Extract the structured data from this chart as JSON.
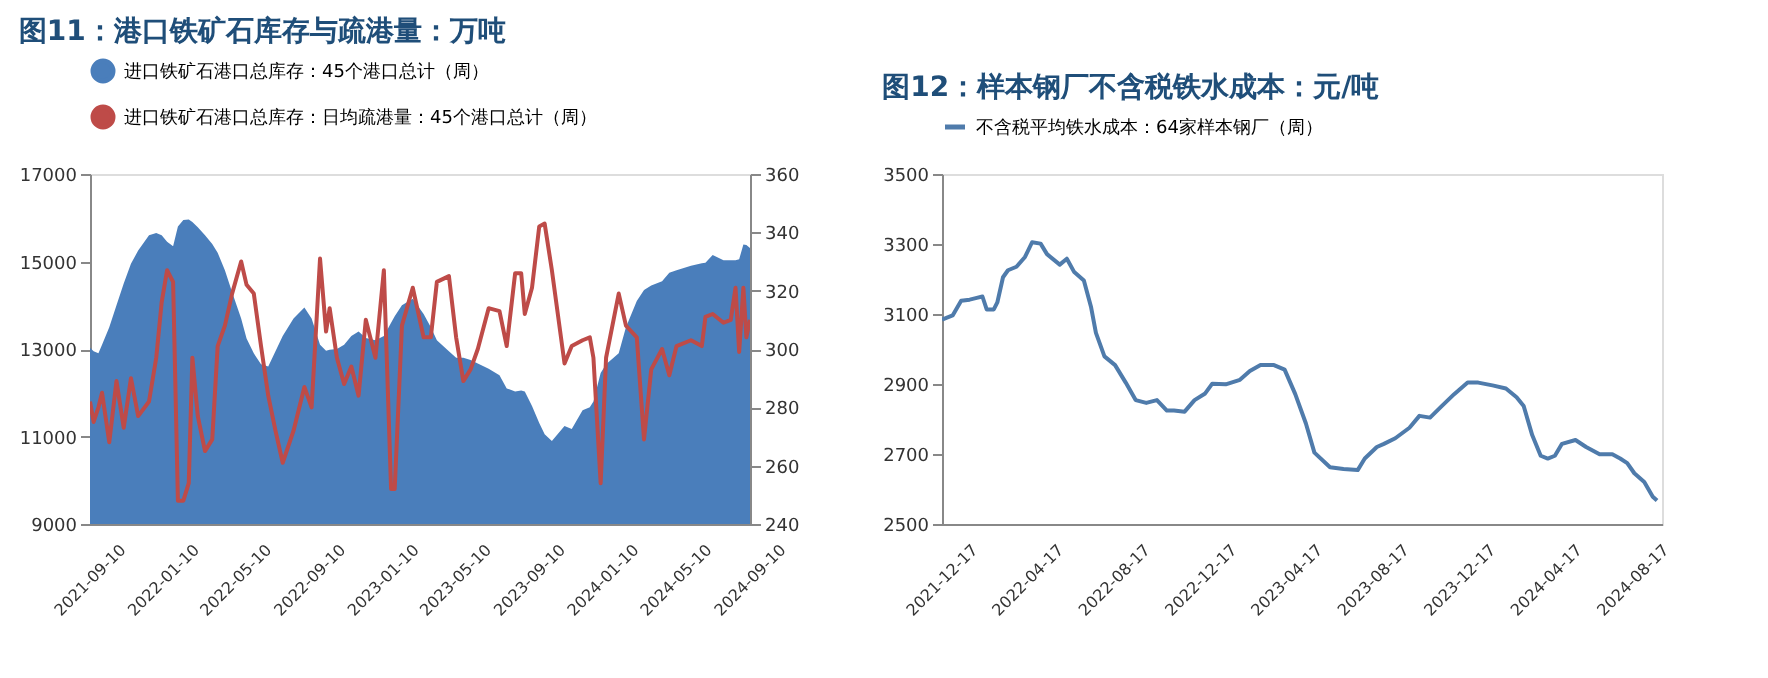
{
  "chart_data": [
    {
      "type": "area",
      "title": "图11：港口铁矿石库存与疏港量：万吨",
      "x": [
        "2021-09-10",
        "2021-09-16",
        "2021-09-24",
        "2021-09-30",
        "2021-10-12",
        "2021-10-24",
        "2021-11-05",
        "2021-11-17",
        "2021-11-29",
        "2021-12-17",
        "2021-12-29",
        "2022-01-07",
        "2022-01-16",
        "2022-01-26",
        "2022-02-03",
        "2022-02-12",
        "2022-02-21",
        "2022-02-27",
        "2022-03-08",
        "2022-03-20",
        "2022-04-01",
        "2022-04-10",
        "2022-04-22",
        "2022-05-04",
        "2022-05-19",
        "2022-05-28",
        "2022-06-09",
        "2022-06-21",
        "2022-07-03",
        "2022-07-15",
        "2022-07-27",
        "2022-08-14",
        "2022-09-01",
        "2022-09-13",
        "2022-09-27",
        "2022-10-07",
        "2022-10-13",
        "2022-10-25",
        "2022-11-06",
        "2022-11-18",
        "2022-11-30",
        "2022-12-12",
        "2022-12-28",
        "2023-01-11",
        "2023-01-23",
        "2023-01-29",
        "2023-02-10",
        "2023-02-28",
        "2023-03-18",
        "2023-03-30",
        "2023-04-09",
        "2023-04-29",
        "2023-05-11",
        "2023-05-23",
        "2023-06-04",
        "2023-06-16",
        "2023-07-04",
        "2023-07-22",
        "2023-08-03",
        "2023-08-17",
        "2023-08-27",
        "2023-09-02",
        "2023-09-14",
        "2023-09-26",
        "2023-10-05",
        "2023-10-17",
        "2023-11-07",
        "2023-11-19",
        "2023-12-07",
        "2023-12-19",
        "2023-12-25",
        "2024-01-06",
        "2024-01-15",
        "2024-02-05",
        "2024-02-17",
        "2024-03-06",
        "2024-03-18",
        "2024-03-30",
        "2024-04-17",
        "2024-04-29",
        "2024-05-11",
        "2024-06-04",
        "2024-06-22",
        "2024-06-28",
        "2024-07-10",
        "2024-07-28",
        "2024-08-09",
        "2024-08-17",
        "2024-08-23",
        "2024-08-30",
        "2024-09-04",
        "2024-09-10"
      ],
      "series": [
        {
          "name": "进口铁矿石港口总库存：45个港口总计（周）",
          "color": "#4a7ebb",
          "values": [
            13030,
            12950,
            12900,
            13100,
            13500,
            14000,
            14500,
            14950,
            15250,
            15600,
            15650,
            15600,
            15450,
            15350,
            15800,
            15950,
            15960,
            15900,
            15780,
            15600,
            15400,
            15200,
            14800,
            14300,
            13700,
            13240,
            12900,
            12650,
            12600,
            12950,
            13300,
            13700,
            13950,
            13700,
            13100,
            12960,
            12980,
            13000,
            13100,
            13300,
            13400,
            13250,
            13200,
            13300,
            13600,
            13750,
            14000,
            14150,
            13800,
            13500,
            13200,
            12950,
            12800,
            12800,
            12750,
            12670,
            12550,
            12400,
            12100,
            12030,
            12050,
            12030,
            11700,
            11310,
            11050,
            10900,
            11240,
            11170,
            11600,
            11670,
            11800,
            12450,
            12650,
            12900,
            13500,
            14100,
            14350,
            14450,
            14550,
            14740,
            14800,
            14900,
            14960,
            14970,
            15150,
            15030,
            15030,
            15030,
            15050,
            15390,
            15380,
            15310
          ]
        },
        {
          "name": "进口铁矿石港口总库存：日均疏港量：45个港口总计（周）",
          "type": "line",
          "axis": "y2",
          "color": "#be4b48",
          "values": [
            282,
            275,
            280,
            285,
            268,
            289,
            273,
            290,
            277,
            282,
            297,
            316,
            327,
            323,
            248,
            248,
            254,
            297,
            277,
            265,
            269,
            301,
            308,
            319,
            330,
            322,
            319,
            301,
            284,
            272,
            261,
            272,
            287,
            280,
            331,
            306,
            314,
            297,
            288,
            294,
            284,
            310,
            297,
            327,
            252,
            252,
            308,
            321,
            304,
            304,
            323,
            325,
            304,
            289,
            293,
            300,
            314,
            313,
            301,
            326,
            326,
            312,
            321,
            342,
            343,
            327,
            295,
            301,
            303,
            304,
            297,
            254,
            297,
            319,
            308,
            304,
            269,
            293,
            300,
            291,
            301,
            303,
            301,
            311,
            312,
            309,
            310,
            321,
            299,
            321,
            304,
            310
          ]
        }
      ],
      "xlim": [
        "2021-09-10",
        "2024-09-10"
      ],
      "xticks": [
        "2021-09-10",
        "2022-01-10",
        "2022-05-10",
        "2022-09-10",
        "2023-01-10",
        "2023-05-10",
        "2023-09-10",
        "2024-01-10",
        "2024-05-10",
        "2024-09-10"
      ],
      "ylim": [
        9000,
        17000
      ],
      "yticks": [
        9000,
        11000,
        13000,
        15000,
        17000
      ],
      "y2lim": [
        240,
        360
      ],
      "y2ticks": [
        240,
        260,
        280,
        300,
        320,
        340,
        360
      ],
      "legend": "top",
      "grid": false
    },
    {
      "type": "line",
      "title": "图12：样本钢厂不含税铁水成本：元/吨",
      "x": [
        "2021-12-17",
        "2022-01-01",
        "2022-01-13",
        "2022-01-25",
        "2022-02-04",
        "2022-02-12",
        "2022-02-18",
        "2022-02-28",
        "2022-03-05",
        "2022-03-13",
        "2022-03-20",
        "2022-04-01",
        "2022-04-13",
        "2022-04-23",
        "2022-05-05",
        "2022-05-14",
        "2022-06-01",
        "2022-06-11",
        "2022-06-21",
        "2022-07-05",
        "2022-07-15",
        "2022-07-22",
        "2022-08-03",
        "2022-08-18",
        "2022-09-02",
        "2022-09-16",
        "2022-10-01",
        "2022-10-16",
        "2022-10-30",
        "2022-11-09",
        "2022-11-24",
        "2022-12-08",
        "2022-12-23",
        "2023-01-02",
        "2023-01-21",
        "2023-02-10",
        "2023-02-24",
        "2023-03-11",
        "2023-03-30",
        "2023-04-14",
        "2023-04-29",
        "2023-05-14",
        "2023-05-26",
        "2023-06-17",
        "2023-07-06",
        "2023-07-26",
        "2023-08-05",
        "2023-08-22",
        "2023-09-01",
        "2023-09-17",
        "2023-10-07",
        "2023-10-21",
        "2023-11-05",
        "2023-11-20",
        "2023-12-09",
        "2023-12-28",
        "2024-01-12",
        "2024-02-01",
        "2024-02-20",
        "2024-03-06",
        "2024-03-16",
        "2024-03-28",
        "2024-04-09",
        "2024-04-19",
        "2024-04-29",
        "2024-05-09",
        "2024-05-28",
        "2024-06-12",
        "2024-07-01",
        "2024-07-19",
        "2024-07-30",
        "2024-08-09",
        "2024-08-19",
        "2024-09-02",
        "2024-09-14",
        "2024-09-20"
      ],
      "series": [
        {
          "name": "不含税平均铁水成本：64家样本钢厂（周）",
          "color": "#4f7bab",
          "values": [
            3084,
            3096,
            3138,
            3141,
            3146,
            3150,
            3113,
            3113,
            3133,
            3205,
            3225,
            3235,
            3263,
            3305,
            3301,
            3271,
            3241,
            3258,
            3221,
            3196,
            3121,
            3046,
            2979,
            2954,
            2904,
            2854,
            2846,
            2854,
            2824,
            2824,
            2821,
            2854,
            2873,
            2901,
            2899,
            2912,
            2937,
            2954,
            2954,
            2941,
            2871,
            2787,
            2704,
            2662,
            2657,
            2654,
            2687,
            2720,
            2729,
            2745,
            2775,
            2809,
            2804,
            2834,
            2871,
            2904,
            2904,
            2896,
            2887,
            2862,
            2837,
            2754,
            2695,
            2687,
            2695,
            2729,
            2740,
            2720,
            2699,
            2699,
            2687,
            2674,
            2645,
            2620,
            2578,
            2567
          ]
        }
      ],
      "xlim": [
        "2021-12-17",
        "2024-09-27"
      ],
      "xticks": [
        "2021-12-17",
        "2022-04-17",
        "2022-08-17",
        "2022-12-17",
        "2023-04-17",
        "2023-08-17",
        "2023-12-17",
        "2024-04-17",
        "2024-08-17"
      ],
      "ylim": [
        2500,
        3500
      ],
      "yticks": [
        2500,
        2700,
        2900,
        3100,
        3300,
        3500
      ],
      "legend": "top",
      "grid": false
    }
  ]
}
